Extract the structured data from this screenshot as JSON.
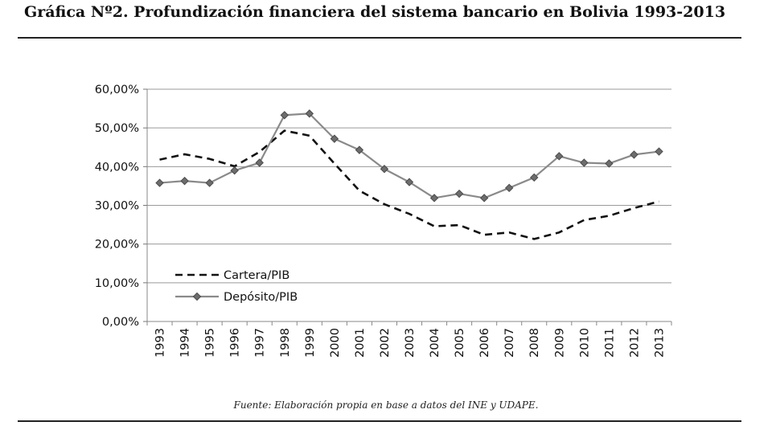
{
  "title": "Gráfica Nº2. Profundización financiera del sistema bancario en Bolivia 1993-2013",
  "source": "Fuente: Elaboración propia en base a datos del INE y UDAPE.",
  "chart_data": {
    "type": "line",
    "x": [
      "1993",
      "1994",
      "1995",
      "1996",
      "1997",
      "1998",
      "1999",
      "2000",
      "2001",
      "2002",
      "2003",
      "2004",
      "2005",
      "2006",
      "2007",
      "2008",
      "2009",
      "2010",
      "2011",
      "2012",
      "2013"
    ],
    "y_ticks": [
      "0,00%",
      "10,00%",
      "20,00%",
      "30,00%",
      "40,00%",
      "50,00%",
      "60,00%"
    ],
    "ylim": [
      0,
      60
    ],
    "grid": true,
    "legend_position": "bottom-left",
    "series": [
      {
        "name": "Cartera/PIB",
        "style": "dashed",
        "color": "#111111",
        "values": [
          41.8,
          43.2,
          42.0,
          40.1,
          43.8,
          49.3,
          48.0,
          40.8,
          33.8,
          30.3,
          27.8,
          24.6,
          24.9,
          22.4,
          23.0,
          21.3,
          23.0,
          26.2,
          27.3,
          29.3,
          31.0
        ]
      },
      {
        "name": "Depósito/PIB",
        "style": "solid-diamond",
        "color": "#8a8a8a",
        "values": [
          35.8,
          36.3,
          35.8,
          39.0,
          41.0,
          53.3,
          53.7,
          47.2,
          44.3,
          39.4,
          36.0,
          31.9,
          33.0,
          31.9,
          34.5,
          37.2,
          42.7,
          41.0,
          40.8,
          43.1,
          43.9
        ]
      }
    ]
  }
}
